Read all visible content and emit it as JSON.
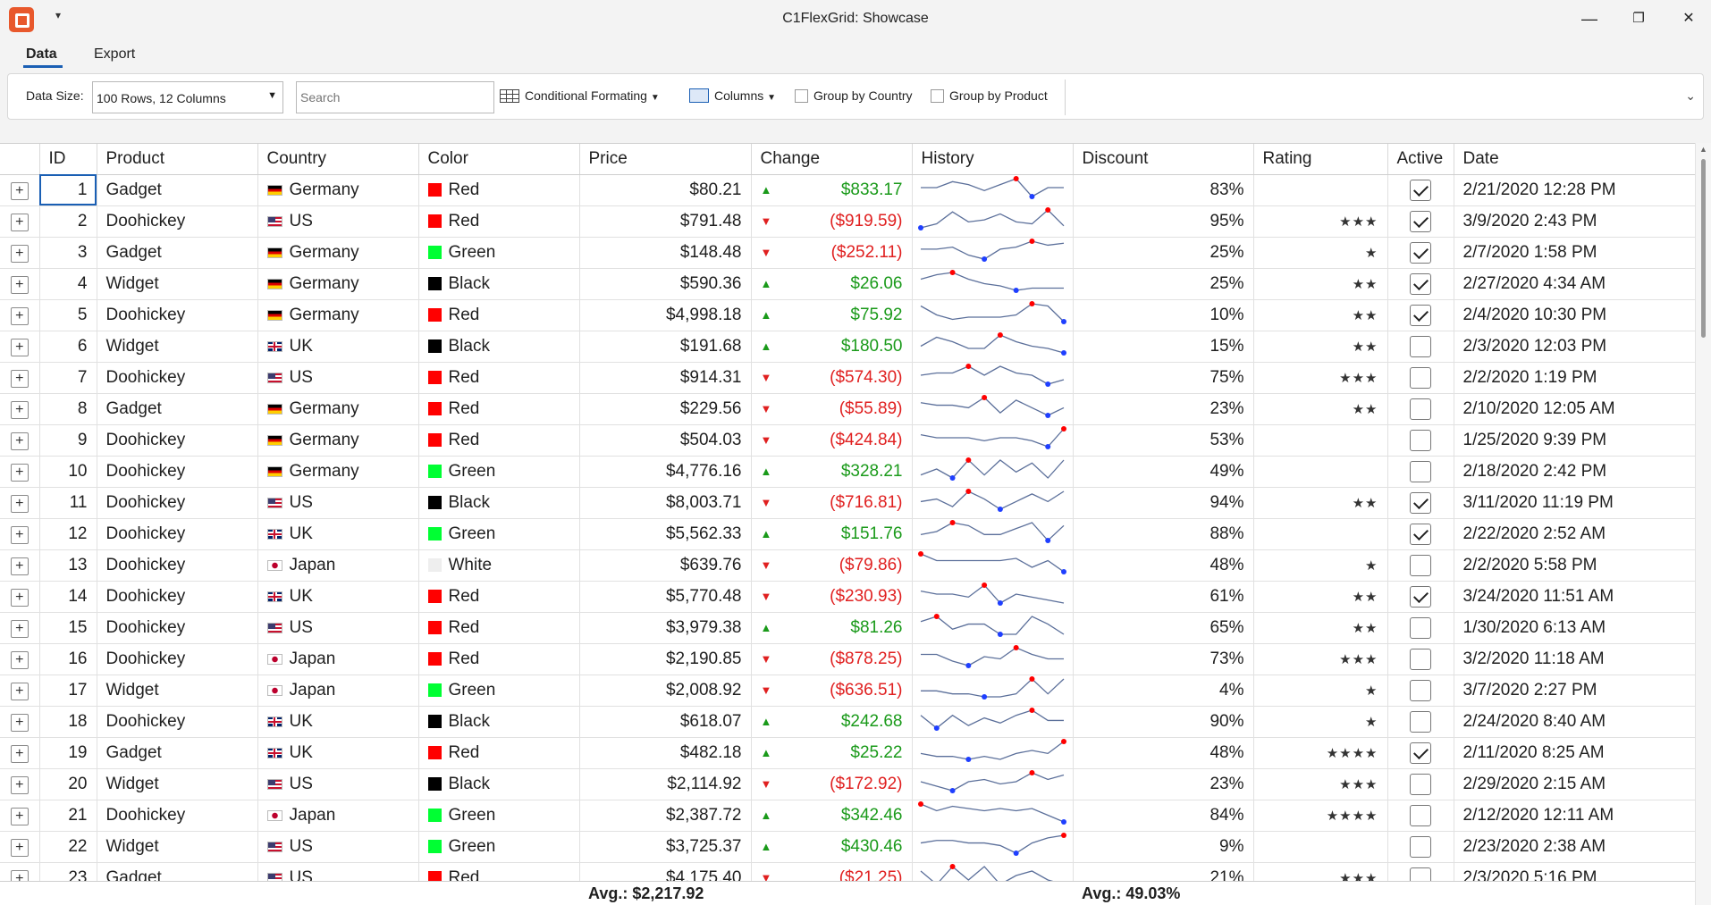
{
  "window": {
    "title": "C1FlexGrid: Showcase",
    "qa_icon": "▾",
    "min": "—",
    "restore": "❐",
    "close": "✕"
  },
  "tabs": [
    {
      "label": "Data",
      "active": true
    },
    {
      "label": "Export",
      "active": false
    }
  ],
  "toolbar": {
    "data_size_label": "Data Size:",
    "data_size_value": "100 Rows, 12 Columns",
    "search_placeholder": "Search",
    "conditional_formatting": "Conditional Formating",
    "columns": "Columns",
    "group_by_country": "Group by Country",
    "group_by_product": "Group by Product"
  },
  "columns": [
    "ID",
    "Product",
    "Country",
    "Color",
    "Price",
    "Change",
    "History",
    "Discount",
    "Rating",
    "Active",
    "Date"
  ],
  "colors": {
    "Red": "#ff0000",
    "Green": "#00ff33",
    "Black": "#000000",
    "White": "#eeeeee"
  },
  "rows": [
    {
      "id": "1",
      "product": "Gadget",
      "country": "Germany",
      "color": "Red",
      "price": "$80.21",
      "change": "$833.17",
      "dir": "up",
      "history": [
        6,
        6,
        8,
        7,
        5,
        7,
        9,
        3,
        6,
        6
      ],
      "discount": "83%",
      "rating": "",
      "active": true,
      "date": "2/21/2020 12:28 PM"
    },
    {
      "id": "2",
      "product": "Doohickey",
      "country": "US",
      "color": "Red",
      "price": "$791.48",
      "change": "($919.59)",
      "dir": "down",
      "history": [
        1,
        3,
        9,
        4,
        5,
        8,
        4,
        3,
        10,
        2
      ],
      "discount": "95%",
      "rating": "★★★",
      "active": true,
      "date": "3/9/2020 2:43 PM"
    },
    {
      "id": "3",
      "product": "Gadget",
      "country": "Germany",
      "color": "Green",
      "price": "$148.48",
      "change": "($252.11)",
      "dir": "down",
      "history": [
        6,
        6,
        7,
        3,
        1,
        6,
        7,
        10,
        8,
        9
      ],
      "discount": "25%",
      "rating": "★",
      "active": true,
      "date": "2/7/2020 1:58 PM"
    },
    {
      "id": "4",
      "product": "Widget",
      "country": "Germany",
      "color": "Black",
      "price": "$590.36",
      "change": "$26.06",
      "dir": "up",
      "history": [
        7,
        9,
        10,
        7,
        5,
        4,
        2,
        3,
        3,
        3
      ],
      "discount": "25%",
      "rating": "★★",
      "active": true,
      "date": "2/27/2020 4:34 AM"
    },
    {
      "id": "5",
      "product": "Doohickey",
      "country": "Germany",
      "color": "Red",
      "price": "$4,998.18",
      "change": "$75.92",
      "dir": "up",
      "history": [
        8,
        4,
        2,
        3,
        3,
        3,
        4,
        9,
        8,
        1
      ],
      "discount": "10%",
      "rating": "★★",
      "active": true,
      "date": "2/4/2020 10:30 PM"
    },
    {
      "id": "6",
      "product": "Widget",
      "country": "UK",
      "color": "Black",
      "price": "$191.68",
      "change": "$180.50",
      "dir": "up",
      "history": [
        4,
        8,
        6,
        3,
        3,
        9,
        6,
        4,
        3,
        1
      ],
      "discount": "15%",
      "rating": "★★",
      "active": false,
      "date": "2/3/2020 12:03 PM"
    },
    {
      "id": "7",
      "product": "Doohickey",
      "country": "US",
      "color": "Red",
      "price": "$914.31",
      "change": "($574.30)",
      "dir": "down",
      "history": [
        5,
        6,
        6,
        9,
        5,
        9,
        6,
        5,
        1,
        3
      ],
      "discount": "75%",
      "rating": "★★★",
      "active": false,
      "date": "2/2/2020 1:19 PM"
    },
    {
      "id": "8",
      "product": "Gadget",
      "country": "Germany",
      "color": "Red",
      "price": "$229.56",
      "change": "($55.89)",
      "dir": "down",
      "history": [
        7,
        6,
        6,
        5,
        9,
        3,
        8,
        5,
        2,
        5
      ],
      "discount": "23%",
      "rating": "★★",
      "active": false,
      "date": "2/10/2020 12:05 AM"
    },
    {
      "id": "9",
      "product": "Doohickey",
      "country": "Germany",
      "color": "Red",
      "price": "$504.03",
      "change": "($424.84)",
      "dir": "down",
      "history": [
        7,
        6,
        6,
        6,
        5,
        6,
        6,
        5,
        3,
        9
      ],
      "discount": "53%",
      "rating": "",
      "active": false,
      "date": "1/25/2020 9:39 PM"
    },
    {
      "id": "10",
      "product": "Doohickey",
      "country": "Germany",
      "color": "Green",
      "price": "$4,776.16",
      "change": "$328.21",
      "dir": "up",
      "history": [
        3,
        5,
        2,
        8,
        3,
        8,
        4,
        7,
        2,
        8
      ],
      "discount": "49%",
      "rating": "",
      "active": false,
      "date": "2/18/2020 2:42 PM"
    },
    {
      "id": "11",
      "product": "Doohickey",
      "country": "US",
      "color": "Black",
      "price": "$8,003.71",
      "change": "($716.81)",
      "dir": "down",
      "history": [
        5,
        6,
        3,
        9,
        6,
        2,
        5,
        8,
        5,
        9
      ],
      "discount": "94%",
      "rating": "★★",
      "active": true,
      "date": "3/11/2020 11:19 PM"
    },
    {
      "id": "12",
      "product": "Doohickey",
      "country": "UK",
      "color": "Green",
      "price": "$5,562.33",
      "change": "$151.76",
      "dir": "up",
      "history": [
        4,
        5,
        8,
        7,
        4,
        4,
        6,
        8,
        2,
        7
      ],
      "discount": "88%",
      "rating": "",
      "active": true,
      "date": "2/22/2020 2:52 AM"
    },
    {
      "id": "13",
      "product": "Doohickey",
      "country": "Japan",
      "color": "White",
      "price": "$639.76",
      "change": "($79.86)",
      "dir": "down",
      "history": [
        9,
        6,
        6,
        6,
        6,
        6,
        7,
        3,
        6,
        1
      ],
      "discount": "48%",
      "rating": "★",
      "active": false,
      "date": "2/2/2020 5:58 PM"
    },
    {
      "id": "14",
      "product": "Doohickey",
      "country": "UK",
      "color": "Red",
      "price": "$5,770.48",
      "change": "($230.93)",
      "dir": "down",
      "history": [
        7,
        6,
        6,
        5,
        9,
        3,
        6,
        5,
        4,
        3
      ],
      "discount": "61%",
      "rating": "★★",
      "active": true,
      "date": "3/24/2020 11:51 AM"
    },
    {
      "id": "15",
      "product": "Doohickey",
      "country": "US",
      "color": "Red",
      "price": "$3,979.38",
      "change": "$81.26",
      "dir": "up",
      "history": [
        7,
        9,
        4,
        6,
        6,
        2,
        2,
        9,
        6,
        2
      ],
      "discount": "65%",
      "rating": "★★",
      "active": false,
      "date": "1/30/2020 6:13 AM"
    },
    {
      "id": "16",
      "product": "Doohickey",
      "country": "Japan",
      "color": "Red",
      "price": "$2,190.85",
      "change": "($878.25)",
      "dir": "down",
      "history": [
        6,
        6,
        3,
        1,
        5,
        4,
        9,
        6,
        4,
        4
      ],
      "discount": "73%",
      "rating": "★★★",
      "active": false,
      "date": "3/2/2020 11:18 AM"
    },
    {
      "id": "17",
      "product": "Widget",
      "country": "Japan",
      "color": "Green",
      "price": "$2,008.92",
      "change": "($636.51)",
      "dir": "down",
      "history": [
        5,
        5,
        4,
        4,
        3,
        3,
        4,
        9,
        4,
        9
      ],
      "discount": "4%",
      "rating": "★",
      "active": false,
      "date": "3/7/2020 2:27 PM"
    },
    {
      "id": "18",
      "product": "Doohickey",
      "country": "UK",
      "color": "Black",
      "price": "$618.07",
      "change": "$242.68",
      "dir": "up",
      "history": [
        7,
        2,
        7,
        3,
        6,
        4,
        7,
        9,
        5,
        5
      ],
      "discount": "90%",
      "rating": "★",
      "active": false,
      "date": "2/24/2020 8:40 AM"
    },
    {
      "id": "19",
      "product": "Gadget",
      "country": "UK",
      "color": "Red",
      "price": "$482.18",
      "change": "$25.22",
      "dir": "up",
      "history": [
        5,
        4,
        4,
        3,
        4,
        3,
        5,
        6,
        5,
        9
      ],
      "discount": "48%",
      "rating": "★★★★",
      "active": true,
      "date": "2/11/2020 8:25 AM"
    },
    {
      "id": "20",
      "product": "Widget",
      "country": "US",
      "color": "Black",
      "price": "$2,114.92",
      "change": "($172.92)",
      "dir": "down",
      "history": [
        5,
        3,
        1,
        5,
        6,
        4,
        5,
        9,
        6,
        8
      ],
      "discount": "23%",
      "rating": "★★★",
      "active": false,
      "date": "2/29/2020 2:15 AM"
    },
    {
      "id": "21",
      "product": "Doohickey",
      "country": "Japan",
      "color": "Green",
      "price": "$2,387.72",
      "change": "$342.46",
      "dir": "up",
      "history": [
        9,
        6,
        8,
        7,
        6,
        7,
        6,
        7,
        4,
        1
      ],
      "discount": "84%",
      "rating": "★★★★",
      "active": false,
      "date": "2/12/2020 12:11 AM"
    },
    {
      "id": "22",
      "product": "Widget",
      "country": "US",
      "color": "Green",
      "price": "$3,725.37",
      "change": "$430.46",
      "dir": "up",
      "history": [
        6,
        7,
        7,
        6,
        6,
        5,
        2,
        6,
        8,
        9
      ],
      "discount": "9%",
      "rating": "",
      "active": false,
      "date": "2/23/2020 2:38 AM"
    },
    {
      "id": "23",
      "product": "Gadget",
      "country": "US",
      "color": "Red",
      "price": "$4,175.40",
      "change": "($21.25)",
      "dir": "down",
      "history": [
        8,
        5,
        9,
        6,
        9,
        5,
        7,
        8,
        6,
        5
      ],
      "discount": "21%",
      "rating": "★★★",
      "active": false,
      "date": "2/3/2020 5:16 PM"
    }
  ],
  "footer": {
    "price_avg": "Avg.: $2,217.92",
    "discount_avg": "Avg.: 49.03%"
  }
}
